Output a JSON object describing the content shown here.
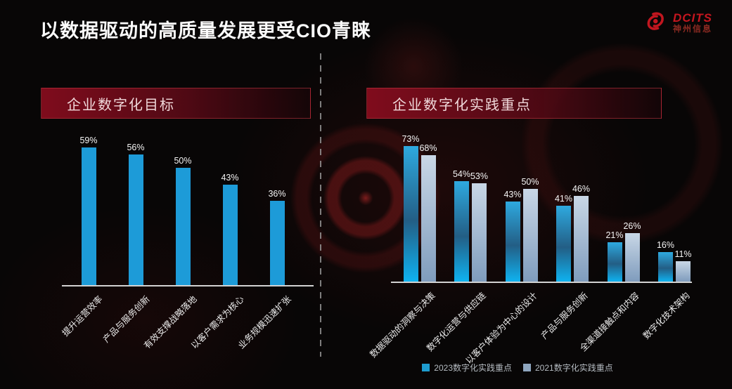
{
  "slide": {
    "title": "以数据驱动的高质量发展更受CIO青睐",
    "logo": {
      "brand": "DCITS",
      "company": "神州信息"
    }
  },
  "colors": {
    "brand_red": "#c1121f",
    "header_box_red": "#860d1e",
    "bar_flat_blue": "#1d9bd8",
    "bar_2023_top": "#2ea9df",
    "bar_2023_mid": "#235e85",
    "bar_2023_bottom": "#0fb2f0",
    "bar_2021_top": "#c9d7e6",
    "bar_2021_bottom": "#7f9cbd",
    "legend_2023": "#1e9ccf",
    "legend_2021": "#8fa6bf",
    "axis": "#d2d2d2"
  },
  "chart_data": [
    {
      "type": "bar",
      "title": "企业数字化目标",
      "unit": "%",
      "ylim": [
        0,
        100
      ],
      "grid": false,
      "legend_position": "none",
      "categories": [
        "提升运营效率",
        "产品与服务创新",
        "有效支撑战略落地",
        "以客户需求为核心",
        "业务规模迅速扩张"
      ],
      "values": [
        59,
        56,
        50,
        43,
        36
      ]
    },
    {
      "type": "bar",
      "title": "企业数字化实践重点",
      "unit": "%",
      "ylim": [
        0,
        100
      ],
      "grid": false,
      "legend_position": "bottom",
      "categories": [
        "数据驱动的洞察与决策",
        "数字化运营与供应链",
        "以客户体验为中心的设计",
        "产品与服务创新",
        "全渠道接触点和内容",
        "数字化技术架构"
      ],
      "series": [
        {
          "name": "2023数字化实践重点",
          "values": [
            73,
            54,
            43,
            41,
            21,
            16
          ]
        },
        {
          "name": "2021数字化实践重点",
          "values": [
            68,
            53,
            50,
            46,
            26,
            11
          ]
        }
      ]
    }
  ]
}
